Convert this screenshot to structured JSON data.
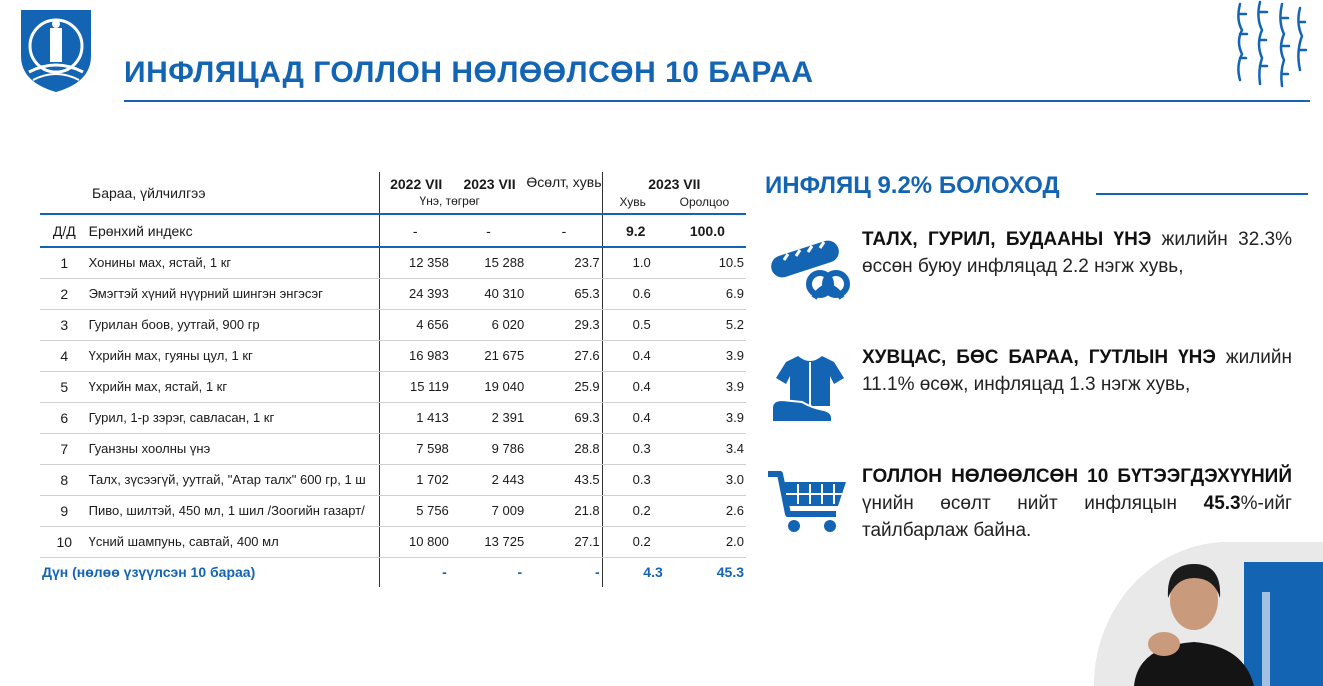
{
  "header": {
    "title": "ИНФЛЯЦАД ГОЛЛОН НӨЛӨӨЛСӨН 10 БАРАА"
  },
  "table": {
    "label_header": "Бараа, үйлчилгээ",
    "col_2022": "2022 VII",
    "col_2023": "2023 VII",
    "price_unit": "Үнэ, төгрөг",
    "growth_label": "Өсөлт, хувь",
    "col_2023b": "2023 VII",
    "share_label": "Хувь",
    "contrib_label": "Оролцоо",
    "index_row": {
      "no": "Д/Д",
      "name": "Ерөнхий индекс",
      "v2022": "-",
      "v2023": "-",
      "growth": "-",
      "share": "9.2",
      "contrib": "100.0"
    },
    "rows": [
      {
        "no": "1",
        "name": "Хонины мах, ястай, 1 кг",
        "v2022": "12 358",
        "v2023": "15 288",
        "growth": "23.7",
        "share": "1.0",
        "contrib": "10.5"
      },
      {
        "no": "2",
        "name": "Эмэгтэй хүний нүүрний шингэн энгэсэг",
        "v2022": "24 393",
        "v2023": "40 310",
        "growth": "65.3",
        "share": "0.6",
        "contrib": "6.9"
      },
      {
        "no": "3",
        "name": "Гурилан боов, уутгай, 900 гр",
        "v2022": "4 656",
        "v2023": "6 020",
        "growth": "29.3",
        "share": "0.5",
        "contrib": "5.2"
      },
      {
        "no": "4",
        "name": "Үхрийн мах, гуяны цул, 1 кг",
        "v2022": "16 983",
        "v2023": "21 675",
        "growth": "27.6",
        "share": "0.4",
        "contrib": "3.9"
      },
      {
        "no": "5",
        "name": "Үхрийн мах, ястай, 1 кг",
        "v2022": "15 119",
        "v2023": "19 040",
        "growth": "25.9",
        "share": "0.4",
        "contrib": "3.9"
      },
      {
        "no": "6",
        "name": "Гурил, 1-р зэрэг, савласан, 1 кг",
        "v2022": "1 413",
        "v2023": "2 391",
        "growth": "69.3",
        "share": "0.4",
        "contrib": "3.9"
      },
      {
        "no": "7",
        "name": "Гуанзны хоолны үнэ",
        "v2022": "7 598",
        "v2023": "9 786",
        "growth": "28.8",
        "share": "0.3",
        "contrib": "3.4"
      },
      {
        "no": "8",
        "name": "Талх, зүсээгүй, уутгай, \"Атар талх\" 600 гр, 1 ш",
        "v2022": "1 702",
        "v2023": "2 443",
        "growth": "43.5",
        "share": "0.3",
        "contrib": "3.0"
      },
      {
        "no": "9",
        "name": "Пиво, шилтэй, 450 мл, 1 шил /Зоогийн газарт/",
        "v2022": "5 756",
        "v2023": "7 009",
        "growth": "21.8",
        "share": "0.2",
        "contrib": "2.6"
      },
      {
        "no": "10",
        "name": "Үсний шампунь, савтай, 400 мл",
        "v2022": "10 800",
        "v2023": "13 725",
        "growth": "27.1",
        "share": "0.2",
        "contrib": "2.0"
      }
    ],
    "total": {
      "name": "Дүн (нөлөө үзүүлсэн 10 бараа)",
      "v2022": "-",
      "v2023": "-",
      "growth": "-",
      "share": "4.3",
      "contrib": "45.3"
    }
  },
  "panel": {
    "title": "ИНФЛЯЦ 9.2% БОЛОХОД",
    "item1": {
      "bold": "ТАЛХ, ГУРИЛ, БУДААНЫ ҮНЭ",
      "rest": " жилийн 32.3% өссөн буюу инфляцад 2.2 нэгж хувь,"
    },
    "item2": {
      "bold": "ХУВЦАС, БӨС БАРАА, ГУТЛЫН ҮНЭ",
      "rest": " жилийн 11.1% өсөж, инфляцад 1.3 нэгж хувь,"
    },
    "item3": {
      "bold": "ГОЛЛОН НӨЛӨӨЛСӨН 10 БҮТЭЭГДЭХҮҮНИЙ",
      "rest_a": " үнийн өсөлт нийт инфляцын ",
      "pct": "45.3",
      "rest_b": "%-ийг тайлбарлаж байна."
    }
  },
  "colors": {
    "accent": "#1464b4"
  },
  "icons": [
    "emblem-icon",
    "mongolian-script-icon",
    "bread-pretzel-icon",
    "clothes-shoe-icon",
    "shopping-cart-icon"
  ]
}
